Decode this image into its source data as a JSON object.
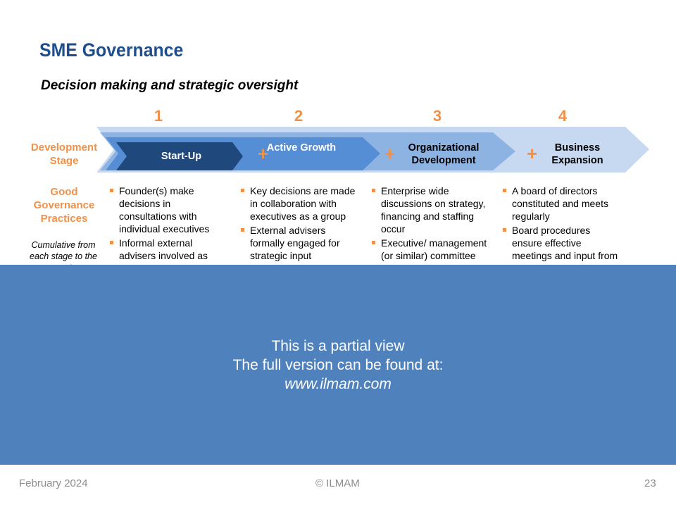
{
  "title": "SME Governance",
  "subtitle": "Decision making and strategic oversight",
  "row_labels": {
    "development_stage": "Development Stage",
    "good_governance": "Good Governance Practices",
    "cumulative": "Cumulative from each stage to the next"
  },
  "stages": [
    {
      "number": "1",
      "name": "Start-Up",
      "bullets": [
        "Founder(s) make decisions in consultations with individual executives",
        "Informal external advisers involved as required"
      ]
    },
    {
      "number": "2",
      "name": "Active Growth",
      "bullets": [
        "Key decisions are made in collaboration with executives as a group",
        "External advisers formally engaged for strategic input"
      ]
    },
    {
      "number": "3",
      "name": "Organizational Development",
      "bullets": [
        "Enterprise wide discussions on strategy, financing and staffing occur",
        "Executive/ management (or similar) committee"
      ]
    },
    {
      "number": "4",
      "name": "Business Expansion",
      "bullets": [
        "A board of directors constituted and meets regularly",
        "Board procedures ensure effective meetings and input from all directors"
      ]
    }
  ],
  "plus_icon": "+",
  "overlay": {
    "line1": "This is a partial view",
    "line2": "The full version can be found at:",
    "link": "www.ilmam.com"
  },
  "footer": {
    "date": "February 2024",
    "copyright": "© ILMAM",
    "page": "23"
  },
  "colors": {
    "title": "#1f4e8c",
    "accent": "#f0914a",
    "overlay": "#4f81bd"
  }
}
